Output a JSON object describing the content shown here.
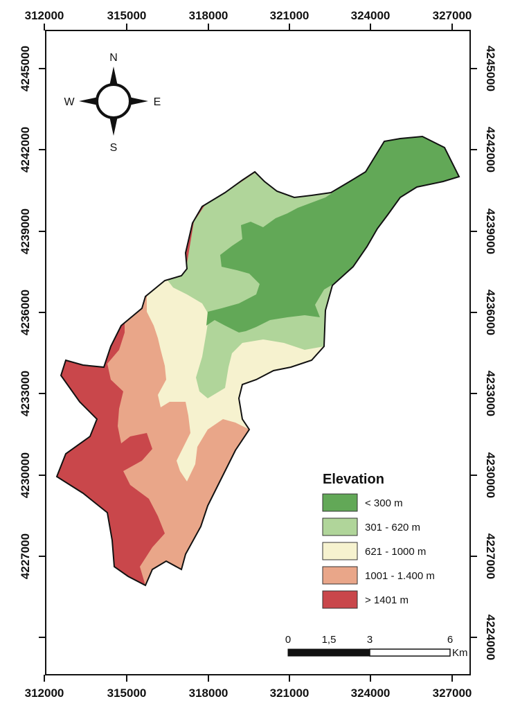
{
  "map": {
    "x_ticks": [
      "312000",
      "315000",
      "318000",
      "321000",
      "324000",
      "327000"
    ],
    "y_ticks": [
      "4245000",
      "4242000",
      "4239000",
      "4236000",
      "4233000",
      "4230000",
      "4227000",
      "4224000"
    ]
  },
  "compass": {
    "n": "N",
    "s": "S",
    "e": "E",
    "w": "W"
  },
  "legend": {
    "title": "Elevation",
    "items": [
      {
        "label": "< 300 m",
        "color": "#62a857"
      },
      {
        "label": "301 - 620 m",
        "color": "#b0d59a"
      },
      {
        "label": "621 - 1000 m",
        "color": "#f6f2cf"
      },
      {
        "label": "1001 - 1.400 m",
        "color": "#e9a689"
      },
      {
        "label": "> 1401 m",
        "color": "#c9474b"
      }
    ]
  },
  "scale_bar": {
    "labels": [
      "0",
      "1,5",
      "3",
      "6"
    ],
    "unit": "Km"
  }
}
